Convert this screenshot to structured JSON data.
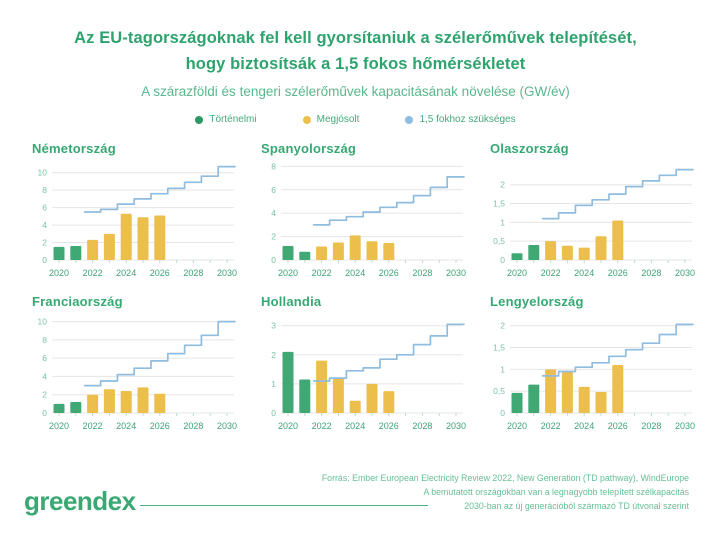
{
  "header": {
    "title_line1": "Az EU-tagországoknak fel kell gyorsítaniuk a szélerőművek telepítését,",
    "title_line2": "hogy biztosítsák a 1,5 fokos hőmérsékletet",
    "subtitle": "A szárazföldi és tengeri szélerőművek kapacitásának növelése (GW/év)"
  },
  "legend": {
    "items": [
      {
        "key": "historical",
        "label": "Történelmi",
        "color": "#2d9a64"
      },
      {
        "key": "predicted",
        "label": "Megjósolt",
        "color": "#ecbf4d"
      },
      {
        "key": "required",
        "label": "1,5 fokhoz szükséges",
        "color": "#8fbcdf"
      }
    ]
  },
  "colors": {
    "accent_green": "#2ea36e",
    "subtitle_green": "#5ab78d",
    "bar_green": "#3fa874",
    "bar_yellow": "#ecbf4d",
    "line_blue": "#8fbcdf",
    "grid": "#e5e5e5",
    "ytick_text": "#7cc2a2",
    "xtick_text": "#3ea376",
    "footer_text": "#66bf96"
  },
  "chart_data": [
    {
      "type": "bar",
      "key": "germany",
      "title": "Németország",
      "x_years": [
        2020,
        2021,
        2022,
        2023,
        2024,
        2025,
        2026,
        2027,
        2028,
        2029,
        2030
      ],
      "xtick_labels": [
        2020,
        2022,
        2024,
        2026,
        2028,
        2030
      ],
      "ylim": [
        0,
        11
      ],
      "yticks": [
        {
          "v": 0,
          "label": "0"
        },
        {
          "v": 2,
          "label": "2"
        },
        {
          "v": 4,
          "label": "4"
        },
        {
          "v": 6,
          "label": "6"
        },
        {
          "v": 8,
          "label": "8"
        },
        {
          "v": 10,
          "label": "10"
        }
      ],
      "bar_series": [
        {
          "name": "Történelmi",
          "color_key": "bar_green",
          "years": [
            2020,
            2021
          ],
          "values": [
            1.5,
            1.6
          ]
        },
        {
          "name": "Megjósolt",
          "color_key": "bar_yellow",
          "years": [
            2022,
            2023,
            2024,
            2025,
            2026
          ],
          "values": [
            2.3,
            3.0,
            5.3,
            4.9,
            5.1
          ]
        }
      ],
      "line_series": {
        "name": "1,5 fokhoz szükséges",
        "style": "step",
        "color_key": "line_blue",
        "years": [
          2022,
          2023,
          2024,
          2025,
          2026,
          2027,
          2028,
          2029,
          2030
        ],
        "values": [
          5.5,
          5.8,
          6.4,
          7.0,
          7.6,
          8.2,
          8.9,
          9.6,
          10.7
        ]
      }
    },
    {
      "type": "bar",
      "key": "spain",
      "title": "Spanyolország",
      "x_years": [
        2020,
        2021,
        2022,
        2023,
        2024,
        2025,
        2026,
        2027,
        2028,
        2029,
        2030
      ],
      "xtick_labels": [
        2020,
        2022,
        2024,
        2026,
        2028,
        2030
      ],
      "ylim": [
        0,
        8.2
      ],
      "yticks": [
        {
          "v": 0,
          "label": "0"
        },
        {
          "v": 2,
          "label": "2"
        },
        {
          "v": 4,
          "label": "4"
        },
        {
          "v": 6,
          "label": "6"
        },
        {
          "v": 8,
          "label": "8"
        }
      ],
      "bar_series": [
        {
          "name": "Történelmi",
          "color_key": "bar_green",
          "years": [
            2020,
            2021
          ],
          "values": [
            1.2,
            0.7
          ]
        },
        {
          "name": "Megjósolt",
          "color_key": "bar_yellow",
          "years": [
            2022,
            2023,
            2024,
            2025,
            2026
          ],
          "values": [
            1.15,
            1.5,
            2.1,
            1.6,
            1.45
          ]
        }
      ],
      "line_series": {
        "name": "1,5 fokhoz szükséges",
        "style": "step",
        "color_key": "line_blue",
        "years": [
          2022,
          2023,
          2024,
          2025,
          2026,
          2027,
          2028,
          2029,
          2030
        ],
        "values": [
          3.0,
          3.4,
          3.7,
          4.1,
          4.5,
          4.9,
          5.5,
          6.2,
          7.1
        ]
      }
    },
    {
      "type": "bar",
      "key": "italy",
      "title": "Olaszország",
      "x_years": [
        2020,
        2021,
        2022,
        2023,
        2024,
        2025,
        2026,
        2027,
        2028,
        2029,
        2030
      ],
      "xtick_labels": [
        2020,
        2022,
        2024,
        2026,
        2028,
        2030
      ],
      "ylim": [
        0,
        2.55
      ],
      "yticks": [
        {
          "v": 0,
          "label": "0"
        },
        {
          "v": 0.5,
          "label": "0,5"
        },
        {
          "v": 1,
          "label": "1"
        },
        {
          "v": 1.5,
          "label": "1,5"
        },
        {
          "v": 2,
          "label": "2"
        }
      ],
      "bar_series": [
        {
          "name": "Történelmi",
          "color_key": "bar_green",
          "years": [
            2020,
            2021
          ],
          "values": [
            0.18,
            0.4
          ]
        },
        {
          "name": "Megjósolt",
          "color_key": "bar_yellow",
          "years": [
            2022,
            2023,
            2024,
            2025,
            2026
          ],
          "values": [
            0.5,
            0.38,
            0.33,
            0.63,
            1.05
          ]
        }
      ],
      "line_series": {
        "name": "1,5 fokhoz szükséges",
        "style": "step",
        "color_key": "line_blue",
        "years": [
          2022,
          2023,
          2024,
          2025,
          2026,
          2027,
          2028,
          2029,
          2030
        ],
        "values": [
          1.1,
          1.25,
          1.45,
          1.6,
          1.75,
          1.95,
          2.1,
          2.25,
          2.4
        ]
      }
    },
    {
      "type": "bar",
      "key": "france",
      "title": "Franciaország",
      "x_years": [
        2020,
        2021,
        2022,
        2023,
        2024,
        2025,
        2026,
        2027,
        2028,
        2029,
        2030
      ],
      "xtick_labels": [
        2020,
        2022,
        2024,
        2026,
        2028,
        2030
      ],
      "ylim": [
        0,
        10.5
      ],
      "yticks": [
        {
          "v": 0,
          "label": "0"
        },
        {
          "v": 2,
          "label": "2"
        },
        {
          "v": 4,
          "label": "4"
        },
        {
          "v": 6,
          "label": "6"
        },
        {
          "v": 8,
          "label": "8"
        },
        {
          "v": 10,
          "label": "10"
        }
      ],
      "bar_series": [
        {
          "name": "Történelmi",
          "color_key": "bar_green",
          "years": [
            2020,
            2021
          ],
          "values": [
            1.0,
            1.2
          ]
        },
        {
          "name": "Megjósolt",
          "color_key": "bar_yellow",
          "years": [
            2022,
            2023,
            2024,
            2025,
            2026
          ],
          "values": [
            2.0,
            2.6,
            2.4,
            2.8,
            2.1
          ]
        }
      ],
      "line_series": {
        "name": "1,5 fokhoz szükséges",
        "style": "step",
        "color_key": "line_blue",
        "years": [
          2022,
          2023,
          2024,
          2025,
          2026,
          2027,
          2028,
          2029,
          2030
        ],
        "values": [
          3.0,
          3.5,
          4.2,
          4.9,
          5.7,
          6.5,
          7.4,
          8.5,
          10.0
        ]
      }
    },
    {
      "type": "bar",
      "key": "netherlands",
      "title": "Hollandia",
      "x_years": [
        2020,
        2021,
        2022,
        2023,
        2024,
        2025,
        2026,
        2027,
        2028,
        2029,
        2030
      ],
      "xtick_labels": [
        2020,
        2022,
        2024,
        2026,
        2028,
        2030
      ],
      "ylim": [
        0,
        3.3
      ],
      "yticks": [
        {
          "v": 0,
          "label": "0"
        },
        {
          "v": 1,
          "label": "1"
        },
        {
          "v": 2,
          "label": "2"
        },
        {
          "v": 3,
          "label": "3"
        }
      ],
      "bar_series": [
        {
          "name": "Történelmi",
          "color_key": "bar_green",
          "years": [
            2020,
            2021
          ],
          "values": [
            2.1,
            1.15
          ]
        },
        {
          "name": "Megjósolt",
          "color_key": "bar_yellow",
          "years": [
            2022,
            2023,
            2024,
            2025,
            2026
          ],
          "values": [
            1.8,
            1.18,
            0.42,
            1.0,
            0.75
          ]
        }
      ],
      "line_series": {
        "name": "1,5 fokhoz szükséges",
        "style": "step",
        "color_key": "line_blue",
        "years": [
          2022,
          2023,
          2024,
          2025,
          2026,
          2027,
          2028,
          2029,
          2030
        ],
        "values": [
          1.1,
          1.2,
          1.45,
          1.55,
          1.85,
          2.0,
          2.35,
          2.65,
          3.05
        ]
      }
    },
    {
      "type": "bar",
      "key": "poland",
      "title": "Lengyelország",
      "x_years": [
        2020,
        2021,
        2022,
        2023,
        2024,
        2025,
        2026,
        2027,
        2028,
        2029,
        2030
      ],
      "xtick_labels": [
        2020,
        2022,
        2024,
        2026,
        2028,
        2030
      ],
      "ylim": [
        0,
        2.2
      ],
      "yticks": [
        {
          "v": 0,
          "label": "0"
        },
        {
          "v": 0.5,
          "label": "0,5"
        },
        {
          "v": 1,
          "label": "1"
        },
        {
          "v": 1.5,
          "label": "1,5"
        },
        {
          "v": 2,
          "label": "2"
        }
      ],
      "bar_series": [
        {
          "name": "Történelmi",
          "color_key": "bar_green",
          "years": [
            2020,
            2021
          ],
          "values": [
            0.46,
            0.65
          ]
        },
        {
          "name": "Megjósolt",
          "color_key": "bar_yellow",
          "years": [
            2022,
            2023,
            2024,
            2025,
            2026
          ],
          "values": [
            1.0,
            0.95,
            0.6,
            0.48,
            1.1
          ]
        }
      ],
      "line_series": {
        "name": "1,5 fokhoz szükséges",
        "style": "step",
        "color_key": "line_blue",
        "years": [
          2022,
          2023,
          2024,
          2025,
          2026,
          2027,
          2028,
          2029,
          2030
        ],
        "values": [
          0.85,
          0.95,
          1.05,
          1.15,
          1.3,
          1.45,
          1.6,
          1.8,
          2.03
        ]
      }
    }
  ],
  "footer": {
    "logo": "greendex",
    "source_line1": "Forrás: Ember European Electricity Review 2022, New Generation (TD pathway), WindEurope",
    "source_line2": "A bemutatott országokban van a legnagyobb telepített szélkapacitás",
    "source_line3": "2030-ban az új generációból származó TD útvonal szerint"
  }
}
